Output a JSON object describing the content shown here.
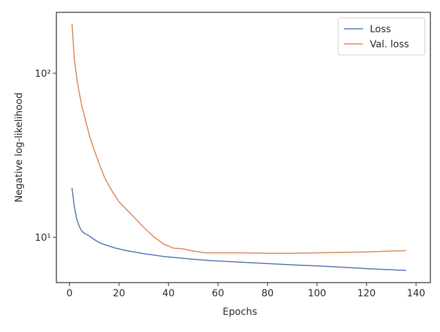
{
  "chart_data": {
    "type": "line",
    "x_label": "Epochs",
    "y_label": "Negative log-likelihood",
    "x": [
      1,
      2,
      3,
      4,
      5,
      6,
      7,
      8,
      10,
      12,
      14,
      16,
      18,
      20,
      23,
      26,
      30,
      34,
      38,
      42,
      46,
      50,
      55,
      60,
      70,
      80,
      90,
      100,
      110,
      120,
      130,
      136
    ],
    "series": [
      {
        "name": "Loss",
        "color": "#4c72b0",
        "values": [
          20,
          15.2,
          12.8,
          11.6,
          10.9,
          10.6,
          10.4,
          10.2,
          9.7,
          9.3,
          9.05,
          8.85,
          8.65,
          8.5,
          8.3,
          8.15,
          7.95,
          7.8,
          7.65,
          7.55,
          7.45,
          7.35,
          7.25,
          7.18,
          7.05,
          6.92,
          6.8,
          6.7,
          6.58,
          6.45,
          6.35,
          6.28
        ]
      },
      {
        "name": "Val. loss",
        "color": "#dd8452",
        "values": [
          200,
          120,
          92,
          75,
          63,
          55,
          48,
          42,
          34,
          28,
          23.5,
          20.5,
          18.3,
          16.5,
          14.8,
          13.3,
          11.5,
          10.1,
          9.1,
          8.6,
          8.5,
          8.25,
          8.05,
          8.05,
          8.05,
          8.0,
          8.0,
          8.05,
          8.1,
          8.15,
          8.25,
          8.3
        ]
      }
    ],
    "xlim": [
      -5.3,
      145.8
    ],
    "xticks": [
      0,
      20,
      40,
      60,
      80,
      100,
      120,
      140
    ],
    "ylim": [
      5.3,
      235
    ],
    "y_log": true,
    "yticks": [
      {
        "value": 10,
        "label": "10¹"
      },
      {
        "value": 100,
        "label": "10²"
      }
    ],
    "legend": "upper-right"
  }
}
